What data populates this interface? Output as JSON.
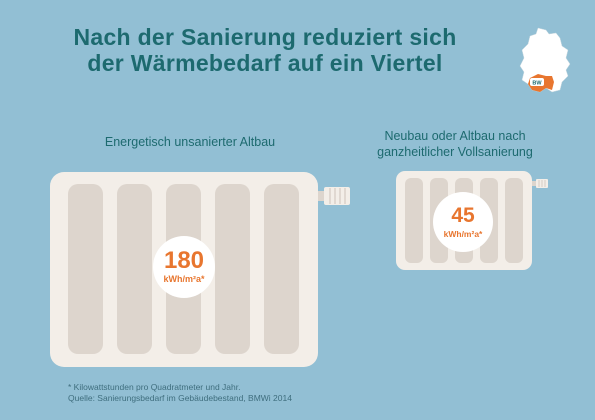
{
  "header": {
    "title_line1": "Nach der Sanierung reduziert sich",
    "title_line2": "der Wärmebedarf auf ein Viertel"
  },
  "map": {
    "badge": "BW",
    "state_color": "#e8762f"
  },
  "left_panel": {
    "label": "Energetisch unsanierter Altbau",
    "value": "180",
    "unit": "kWh/m²a*"
  },
  "right_panel": {
    "label_line1": "Neubau oder Altbau nach",
    "label_line2": "ganzheitlicher Vollsanierung",
    "value": "45",
    "unit": "kWh/m²a*"
  },
  "footnote": {
    "line1": "* Kilowattstunden pro Quadratmeter und Jahr.",
    "line2": "Quelle: Sanierungsbedarf im Gebäudebestand, BMWi 2014"
  },
  "colors": {
    "background": "#92bfd4",
    "title": "#1d6a6f",
    "accent": "#e8762f",
    "radiator_frame": "#f3eee8",
    "radiator_fin": "#ddd5cd"
  }
}
